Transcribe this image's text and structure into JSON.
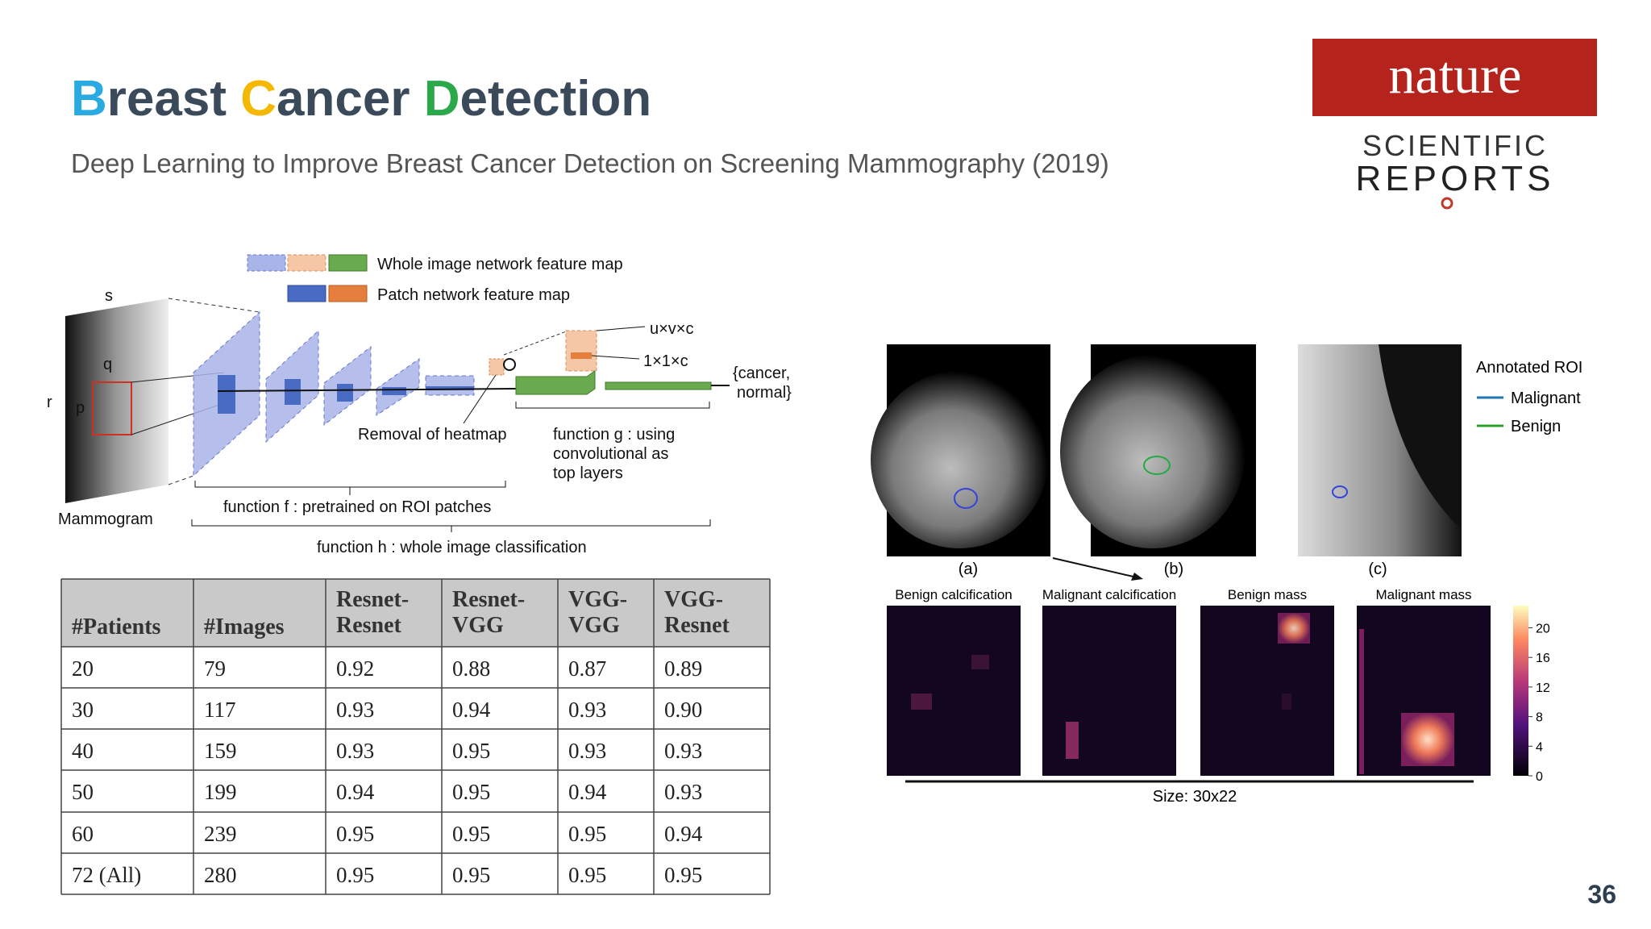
{
  "header": {
    "title_parts": [
      "B",
      "reast ",
      "C",
      "ancer ",
      "D",
      "etection"
    ],
    "subtitle": "Deep Learning to Improve Breast Cancer Detection on Screening Mammography (2019)",
    "logo": {
      "nature": "nature",
      "line1": "SCIENTIFIC",
      "line2": "REPORTS"
    }
  },
  "diagram": {
    "legend": [
      "Whole image network feature map",
      "Patch network feature map"
    ],
    "labels": {
      "s": "s",
      "q": "q",
      "r": "r",
      "p": "p",
      "mammogram": "Mammogram",
      "uvc": "u×v×c",
      "c11": "1×1×c",
      "output": [
        "{cancer,",
        "normal}"
      ],
      "removal": "Removal of heatmap",
      "g": [
        "function g : using",
        "convolutional as",
        "top layers"
      ],
      "f": "function f : pretrained on ROI patches",
      "h": "function h : whole image classification"
    }
  },
  "table": {
    "header": [
      [
        "#Patients"
      ],
      [
        "#Images"
      ],
      [
        "Resnet-",
        "Resnet"
      ],
      [
        "Resnet-",
        "VGG"
      ],
      [
        "VGG-",
        "VGG"
      ],
      [
        "VGG-",
        "Resnet"
      ]
    ],
    "rows": [
      [
        "20",
        "79",
        "0.92",
        "0.88",
        "0.87",
        "0.89"
      ],
      [
        "30",
        "117",
        "0.93",
        "0.94",
        "0.93",
        "0.90"
      ],
      [
        "40",
        "159",
        "0.93",
        "0.95",
        "0.93",
        "0.93"
      ],
      [
        "50",
        "199",
        "0.94",
        "0.95",
        "0.94",
        "0.93"
      ],
      [
        "60",
        "239",
        "0.95",
        "0.95",
        "0.95",
        "0.94"
      ],
      [
        "72 (All)",
        "280",
        "0.95",
        "0.95",
        "0.95",
        "0.95"
      ]
    ]
  },
  "mammograms": {
    "captions": [
      "(a)",
      "(b)",
      "(c)"
    ],
    "legend_title": "Annotated ROI",
    "legend": [
      "Malignant",
      "Benign"
    ]
  },
  "heatmaps": {
    "titles": [
      "Benign calcification",
      "Malignant calcification",
      "Benign mass",
      "Malignant mass"
    ],
    "colorbar_ticks": [
      20,
      16,
      12,
      8,
      4,
      0
    ],
    "size": "Size: 30x22"
  },
  "page_number": "36"
}
